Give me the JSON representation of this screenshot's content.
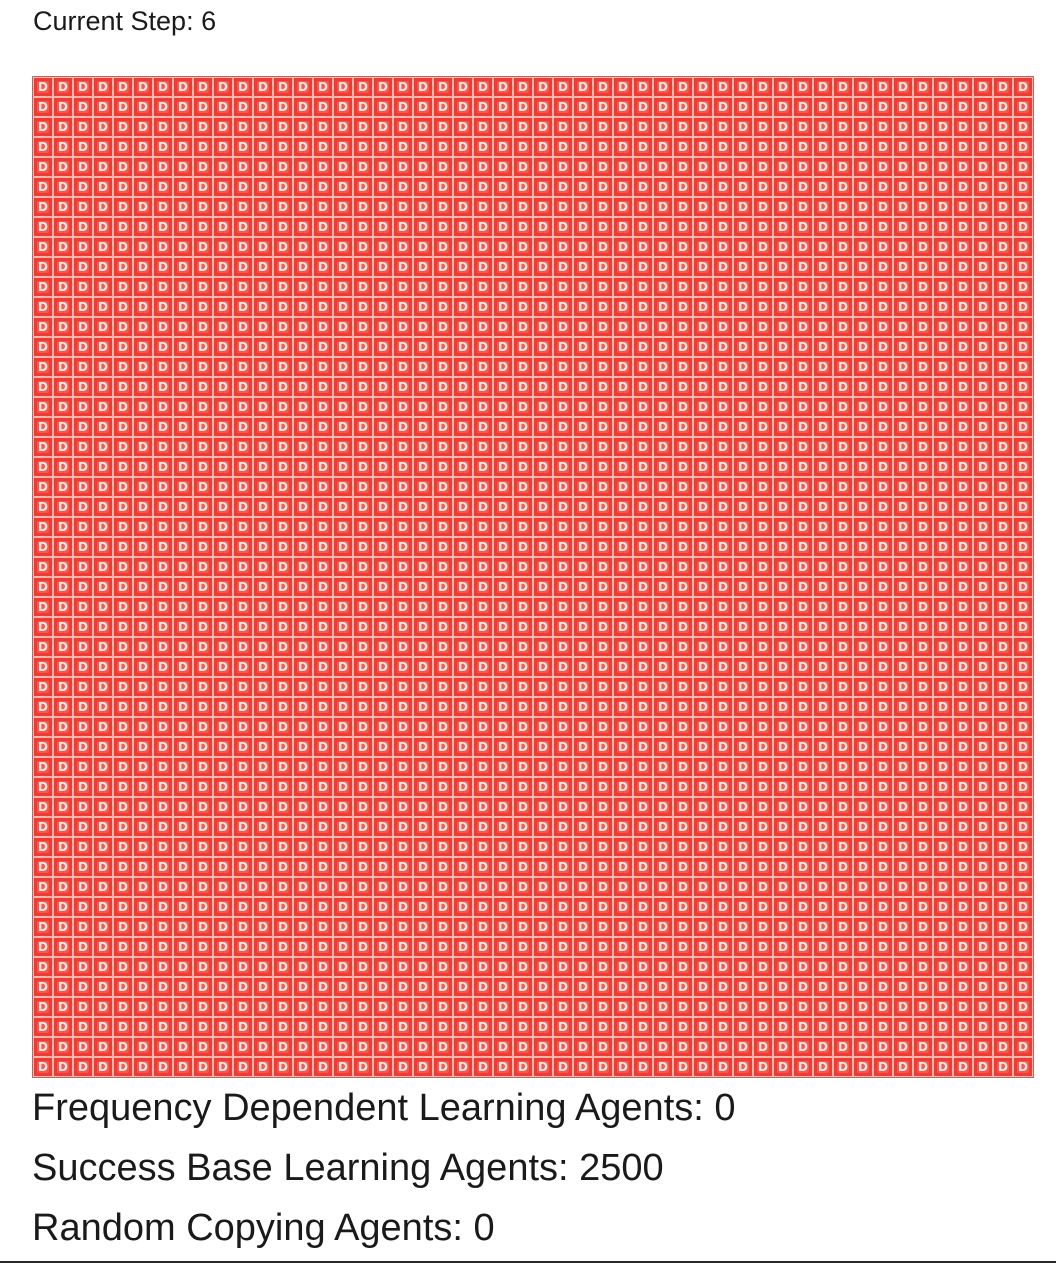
{
  "header": {
    "step_label": "Current Step: 6"
  },
  "grid": {
    "rows": 50,
    "cols": 50,
    "cell_text": "D",
    "cell_color": "#ee3b33",
    "cell_border_color": "#ffb7ad",
    "cell_text_color": "#ffe9e4"
  },
  "stats": {
    "frequency_dependent": "Frequency Dependent Learning Agents: 0",
    "success_based": "Success Base Learning Agents: 2500",
    "random_copying": "Random Copying Agents: 0"
  }
}
